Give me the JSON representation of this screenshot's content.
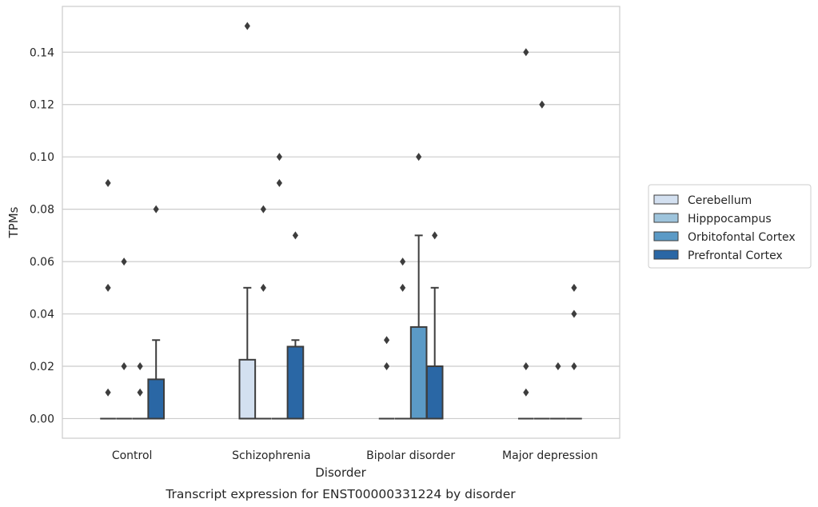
{
  "chart_data": {
    "type": "box",
    "title": "",
    "caption": "Transcript expression for ENST00000331224 by disorder",
    "xlabel": "Disorder",
    "ylabel": "TPMs",
    "ylim": [
      -0.0075,
      0.1575
    ],
    "yticks": [
      0.0,
      0.02,
      0.04,
      0.06,
      0.08,
      0.1,
      0.12,
      0.14
    ],
    "ytick_labels": [
      "0.00",
      "0.02",
      "0.04",
      "0.06",
      "0.08",
      "0.10",
      "0.12",
      "0.14"
    ],
    "grid": "horizontal",
    "legend_position": "right",
    "categories": [
      "Control",
      "Schizophrenia",
      "Bipolar disorder",
      "Major depression"
    ],
    "series": [
      {
        "name": "Cerebellum",
        "color": "#d3e0f0",
        "boxes": [
          {
            "q1": 0,
            "median": 0,
            "q3": 0,
            "whisker_low": 0,
            "whisker_high": 0,
            "outliers": [
              0.01,
              0.05,
              0.09
            ]
          },
          {
            "q1": 0,
            "median": 0,
            "q3": 0.0225,
            "whisker_low": 0,
            "whisker_high": 0.05,
            "outliers": [
              0.15
            ]
          },
          {
            "q1": 0,
            "median": 0,
            "q3": 0,
            "whisker_low": 0,
            "whisker_high": 0,
            "outliers": [
              0.02,
              0.03
            ]
          },
          {
            "q1": 0,
            "median": 0,
            "q3": 0,
            "whisker_low": 0,
            "whisker_high": 0,
            "outliers": [
              0.01,
              0.02,
              0.14
            ]
          }
        ]
      },
      {
        "name": "Hipppocampus",
        "color": "#9ec4dc",
        "boxes": [
          {
            "q1": 0,
            "median": 0,
            "q3": 0,
            "whisker_low": 0,
            "whisker_high": 0,
            "outliers": [
              0.02,
              0.06
            ]
          },
          {
            "q1": 0,
            "median": 0,
            "q3": 0,
            "whisker_low": 0,
            "whisker_high": 0,
            "outliers": [
              0.05,
              0.08
            ]
          },
          {
            "q1": 0,
            "median": 0,
            "q3": 0,
            "whisker_low": 0,
            "whisker_high": 0,
            "outliers": [
              0.05,
              0.06
            ]
          },
          {
            "q1": 0,
            "median": 0,
            "q3": 0,
            "whisker_low": 0,
            "whisker_high": 0,
            "outliers": [
              0.12
            ]
          }
        ]
      },
      {
        "name": "Orbitofontal Cortex",
        "color": "#5b9ac6",
        "boxes": [
          {
            "q1": 0,
            "median": 0,
            "q3": 0,
            "whisker_low": 0,
            "whisker_high": 0,
            "outliers": [
              0.01,
              0.02
            ]
          },
          {
            "q1": 0,
            "median": 0,
            "q3": 0,
            "whisker_low": 0,
            "whisker_high": 0,
            "outliers": [
              0.09,
              0.1
            ]
          },
          {
            "q1": 0,
            "median": 0,
            "q3": 0.035,
            "whisker_low": 0,
            "whisker_high": 0.07,
            "outliers": [
              0.1
            ]
          },
          {
            "q1": 0,
            "median": 0,
            "q3": 0,
            "whisker_low": 0,
            "whisker_high": 0,
            "outliers": [
              0.02
            ]
          }
        ]
      },
      {
        "name": "Prefrontal Cortex",
        "color": "#2a67a5",
        "boxes": [
          {
            "q1": 0,
            "median": 0,
            "q3": 0.015,
            "whisker_low": 0,
            "whisker_high": 0.03,
            "outliers": [
              0.08
            ]
          },
          {
            "q1": 0,
            "median": 0,
            "q3": 0.0275,
            "whisker_low": 0,
            "whisker_high": 0.03,
            "outliers": [
              0.07
            ]
          },
          {
            "q1": 0,
            "median": 0,
            "q3": 0.02,
            "whisker_low": 0,
            "whisker_high": 0.05,
            "outliers": [
              0.07
            ]
          },
          {
            "q1": 0,
            "median": 0,
            "q3": 0,
            "whisker_low": 0,
            "whisker_high": 0,
            "outliers": [
              0.02,
              0.04,
              0.05
            ]
          }
        ]
      }
    ]
  }
}
